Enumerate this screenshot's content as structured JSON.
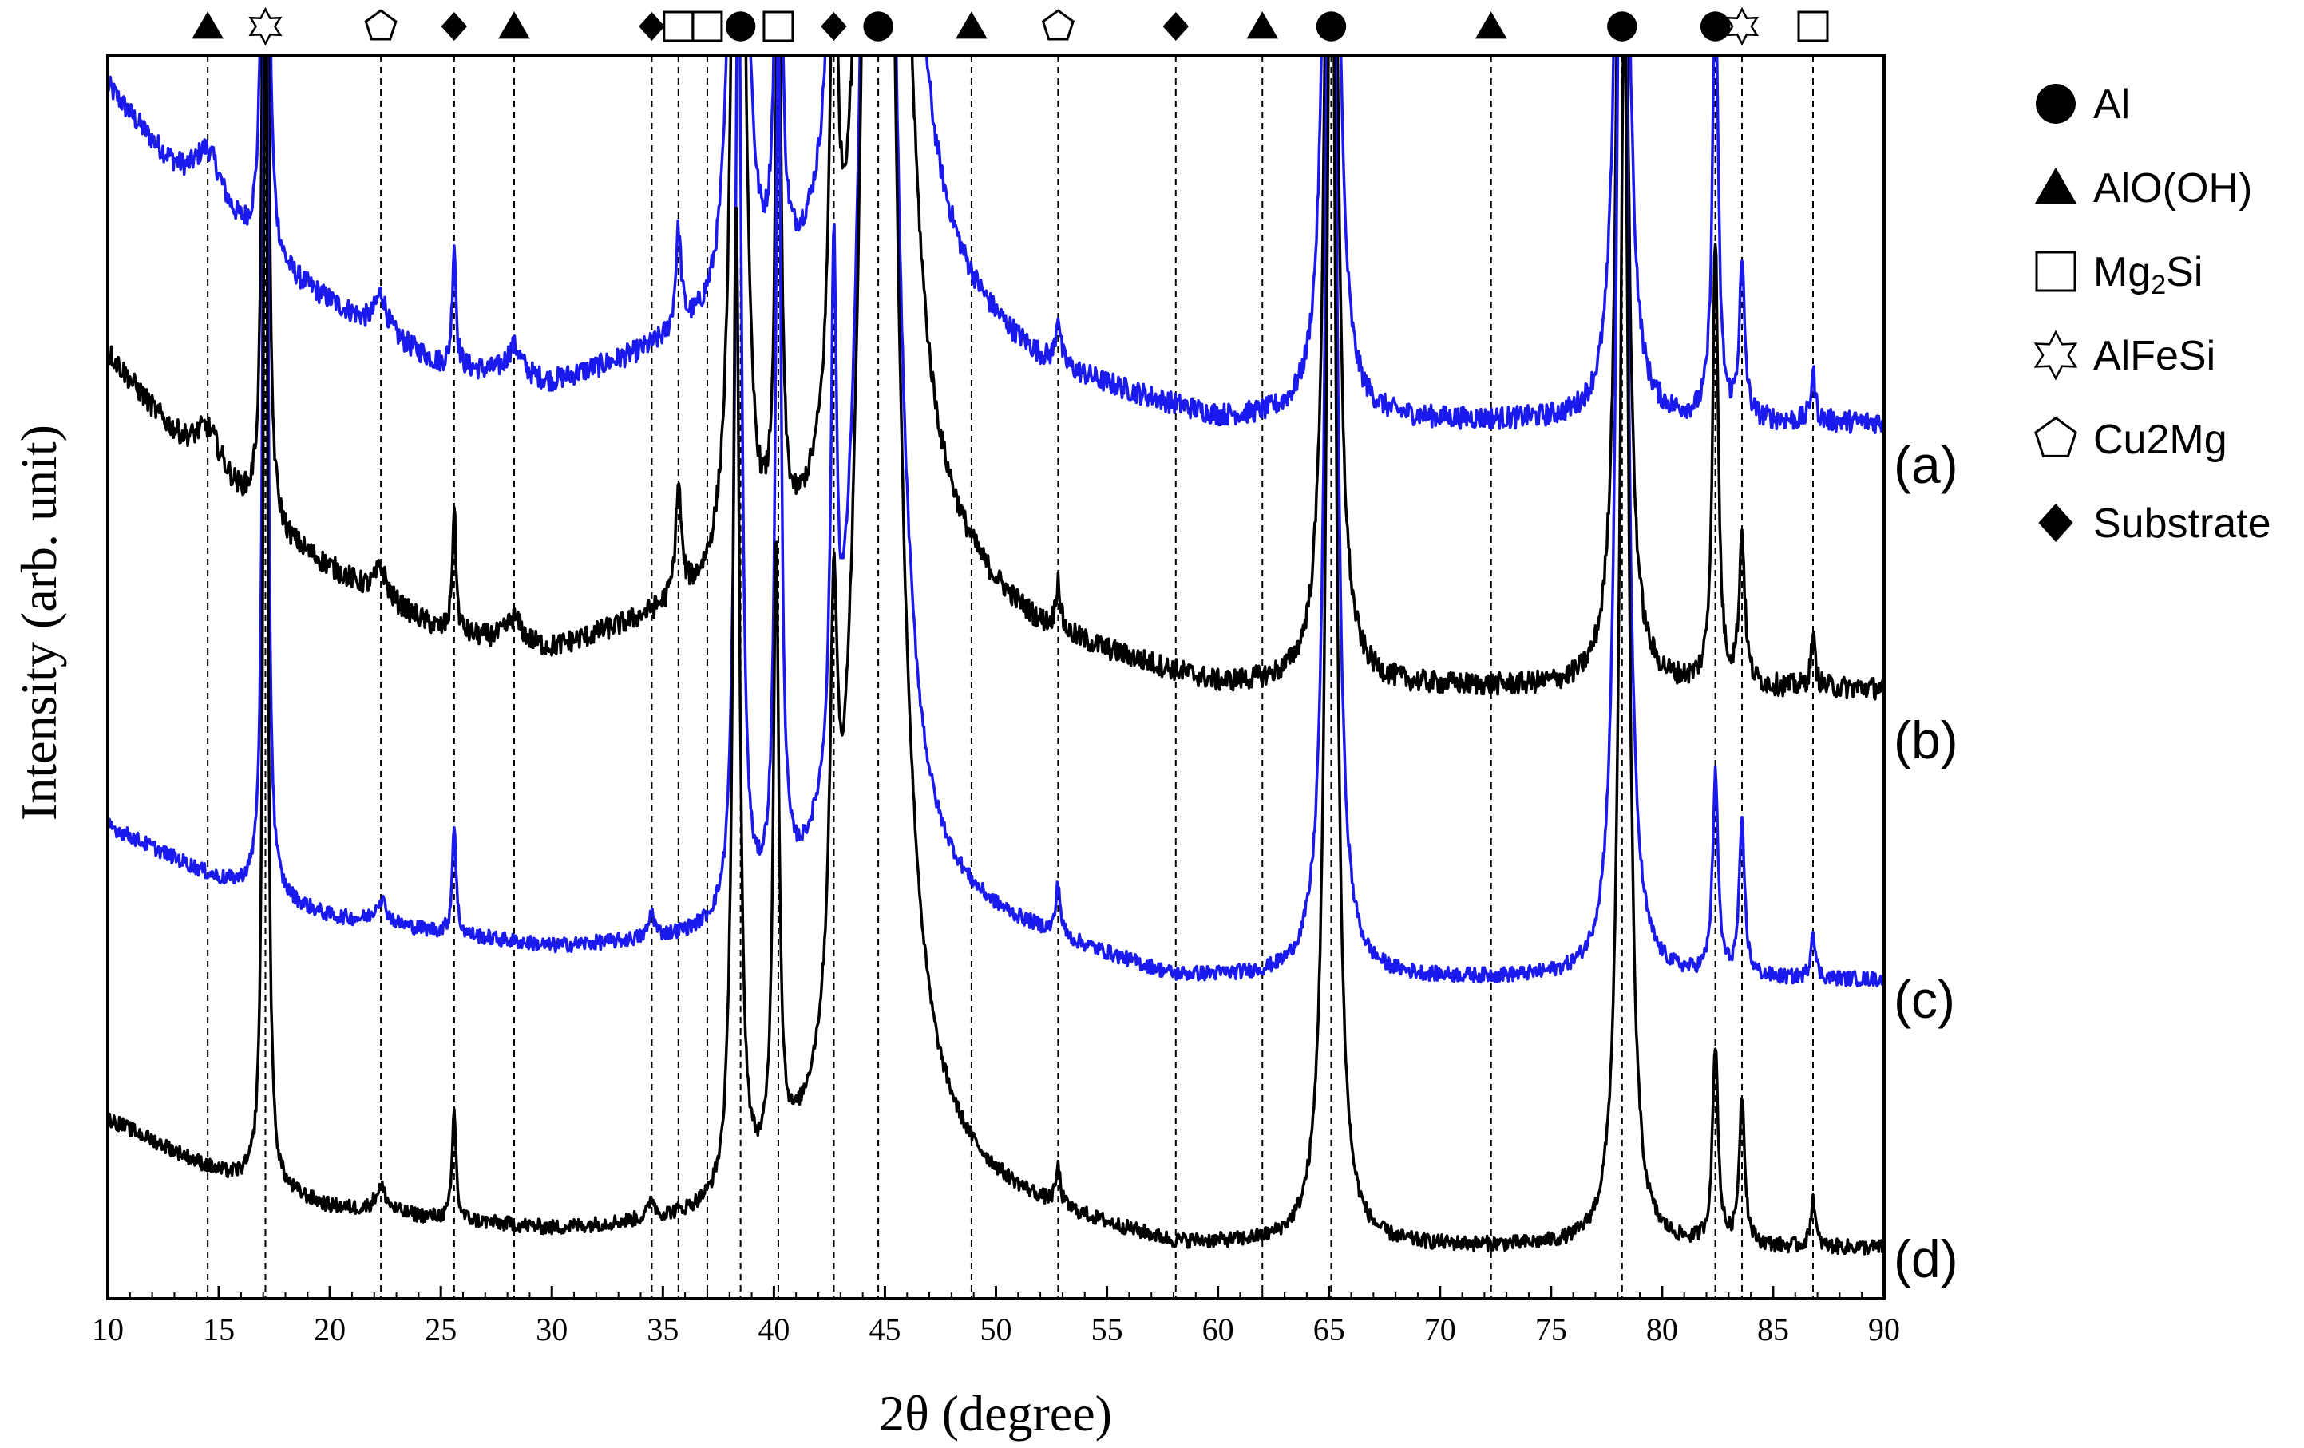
{
  "chart_data": {
    "type": "line",
    "title": "",
    "xlabel": "2θ (degree)",
    "ylabel": "Intensity (arb. unit)",
    "xlim": [
      10,
      90
    ],
    "xticks": [
      10,
      15,
      20,
      25,
      30,
      35,
      40,
      45,
      50,
      55,
      60,
      65,
      70,
      75,
      80,
      85,
      90
    ],
    "yticks_shown": false,
    "grid": false,
    "legend_position": "right",
    "legend": [
      {
        "symbol": "circle",
        "filled": true,
        "label": "Al"
      },
      {
        "symbol": "triangle",
        "filled": true,
        "label": "AlO(OH)"
      },
      {
        "symbol": "square",
        "filled": false,
        "label": "Mg",
        "subscript": "2",
        "suffix": "Si"
      },
      {
        "symbol": "star",
        "filled": false,
        "label": "AlFeSi"
      },
      {
        "symbol": "pentagon",
        "filled": false,
        "label": "Cu2Mg"
      },
      {
        "symbol": "diamond",
        "filled": true,
        "label": "Substrate"
      }
    ],
    "reference_lines": [
      {
        "x": 14.5,
        "phase": "triangle"
      },
      {
        "x": 17.1,
        "phase": "star"
      },
      {
        "x": 22.3,
        "phase": "pentagon"
      },
      {
        "x": 25.6,
        "phase": "diamond"
      },
      {
        "x": 28.3,
        "phase": "triangle"
      },
      {
        "x": 34.5,
        "phase": "diamond"
      },
      {
        "x": 35.7,
        "phase": "square"
      },
      {
        "x": 37.0,
        "phase": "square"
      },
      {
        "x": 38.5,
        "phase": "circle"
      },
      {
        "x": 40.2,
        "phase": "square"
      },
      {
        "x": 42.7,
        "phase": "diamond"
      },
      {
        "x": 44.7,
        "phase": "circle"
      },
      {
        "x": 48.9,
        "phase": "triangle"
      },
      {
        "x": 52.8,
        "phase": "pentagon"
      },
      {
        "x": 58.1,
        "phase": "diamond"
      },
      {
        "x": 62.0,
        "phase": "triangle"
      },
      {
        "x": 65.1,
        "phase": "circle"
      },
      {
        "x": 72.3,
        "phase": "triangle"
      },
      {
        "x": 78.2,
        "phase": "circle"
      },
      {
        "x": 82.4,
        "phase": "circle"
      },
      {
        "x": 83.6,
        "phase": "star"
      },
      {
        "x": 86.8,
        "phase": "square"
      }
    ],
    "series": [
      {
        "name": "(a)",
        "color": "#1a1aee",
        "baseline": 3.52,
        "noise": 0.045,
        "background": [
          [
            10,
            1.35
          ],
          [
            14,
            0.88
          ],
          [
            18,
            0.58
          ],
          [
            25,
            0.22
          ],
          [
            30,
            0.14
          ],
          [
            36,
            0.28
          ],
          [
            40,
            0.32
          ],
          [
            43,
            0.38
          ],
          [
            48,
            0.35
          ],
          [
            52,
            0.18
          ],
          [
            60,
            0.0
          ],
          [
            90,
            0.0
          ]
        ],
        "peaks": [
          [
            14.5,
            0.25,
            0.8
          ],
          [
            17.1,
            6.0,
            0.1
          ],
          [
            22.3,
            0.15,
            0.3
          ],
          [
            25.6,
            0.5,
            0.1
          ],
          [
            28.3,
            0.12,
            0.4
          ],
          [
            35.7,
            0.4,
            0.15
          ],
          [
            38.4,
            6.0,
            0.25
          ],
          [
            40.2,
            2.5,
            0.15
          ],
          [
            42.7,
            2.0,
            0.2
          ],
          [
            44.9,
            10.0,
            0.7
          ],
          [
            52.8,
            0.2,
            0.12
          ],
          [
            65.1,
            6.0,
            0.25
          ],
          [
            78.2,
            5.0,
            0.25
          ],
          [
            82.4,
            1.8,
            0.15
          ],
          [
            83.6,
            0.6,
            0.15
          ],
          [
            86.8,
            0.2,
            0.12
          ]
        ]
      },
      {
        "name": "(b)",
        "color": "#000000",
        "baseline": 2.45,
        "noise": 0.045,
        "background": [
          [
            10,
            1.35
          ],
          [
            14,
            0.88
          ],
          [
            18,
            0.58
          ],
          [
            25,
            0.22
          ],
          [
            30,
            0.14
          ],
          [
            36,
            0.28
          ],
          [
            40,
            0.32
          ],
          [
            43,
            0.38
          ],
          [
            48,
            0.35
          ],
          [
            52,
            0.18
          ],
          [
            60,
            0.0
          ],
          [
            90,
            0.0
          ]
        ],
        "peaks": [
          [
            14.5,
            0.2,
            0.8
          ],
          [
            17.1,
            6.0,
            0.1
          ],
          [
            22.3,
            0.12,
            0.3
          ],
          [
            25.6,
            0.5,
            0.1
          ],
          [
            28.3,
            0.1,
            0.4
          ],
          [
            35.7,
            0.45,
            0.15
          ],
          [
            38.4,
            6.0,
            0.25
          ],
          [
            40.2,
            2.5,
            0.15
          ],
          [
            42.7,
            2.0,
            0.2
          ],
          [
            44.9,
            10.0,
            0.7
          ],
          [
            52.8,
            0.2,
            0.12
          ],
          [
            65.1,
            6.0,
            0.25
          ],
          [
            78.2,
            5.0,
            0.25
          ],
          [
            82.4,
            1.8,
            0.15
          ],
          [
            83.6,
            0.6,
            0.15
          ],
          [
            86.8,
            0.2,
            0.12
          ]
        ]
      },
      {
        "name": "(c)",
        "color": "#1a1aee",
        "baseline": 1.28,
        "noise": 0.03,
        "background": [
          [
            10,
            0.62
          ],
          [
            15,
            0.4
          ],
          [
            20,
            0.25
          ],
          [
            30,
            0.12
          ],
          [
            38,
            0.14
          ],
          [
            42,
            0.2
          ],
          [
            48,
            0.22
          ],
          [
            52,
            0.15
          ],
          [
            58,
            0.0
          ],
          [
            90,
            0.0
          ]
        ],
        "peaks": [
          [
            17.1,
            6.0,
            0.1
          ],
          [
            22.3,
            0.1,
            0.3
          ],
          [
            25.6,
            0.45,
            0.1
          ],
          [
            34.5,
            0.1,
            0.15
          ],
          [
            38.4,
            4.0,
            0.18
          ],
          [
            40.2,
            3.5,
            0.15
          ],
          [
            42.7,
            2.0,
            0.15
          ],
          [
            44.7,
            10.0,
            0.6
          ],
          [
            52.8,
            0.2,
            0.12
          ],
          [
            65.1,
            6.0,
            0.25
          ],
          [
            78.2,
            6.0,
            0.25
          ],
          [
            82.4,
            0.8,
            0.15
          ],
          [
            83.6,
            0.6,
            0.15
          ],
          [
            86.8,
            0.2,
            0.12
          ]
        ]
      },
      {
        "name": "(d)",
        "color": "#000000",
        "baseline": 0.2,
        "noise": 0.03,
        "background": [
          [
            10,
            0.52
          ],
          [
            15,
            0.3
          ],
          [
            20,
            0.16
          ],
          [
            30,
            0.06
          ],
          [
            38,
            0.08
          ],
          [
            43,
            0.18
          ],
          [
            48,
            0.2
          ],
          [
            52,
            0.12
          ],
          [
            58,
            0.0
          ],
          [
            90,
            0.0
          ]
        ],
        "peaks": [
          [
            17.1,
            6.0,
            0.1
          ],
          [
            22.3,
            0.1,
            0.3
          ],
          [
            25.6,
            0.45,
            0.1
          ],
          [
            34.5,
            0.08,
            0.15
          ],
          [
            38.3,
            4.0,
            0.18
          ],
          [
            40.1,
            2.5,
            0.15
          ],
          [
            42.7,
            1.5,
            0.2
          ],
          [
            44.7,
            10.0,
            0.7
          ],
          [
            52.8,
            0.15,
            0.12
          ],
          [
            65.1,
            6.0,
            0.25
          ],
          [
            78.3,
            5.0,
            0.25
          ],
          [
            82.4,
            0.8,
            0.15
          ],
          [
            83.6,
            0.6,
            0.15
          ],
          [
            86.8,
            0.2,
            0.12
          ]
        ]
      }
    ],
    "ylim": [
      0,
      5.0
    ]
  }
}
